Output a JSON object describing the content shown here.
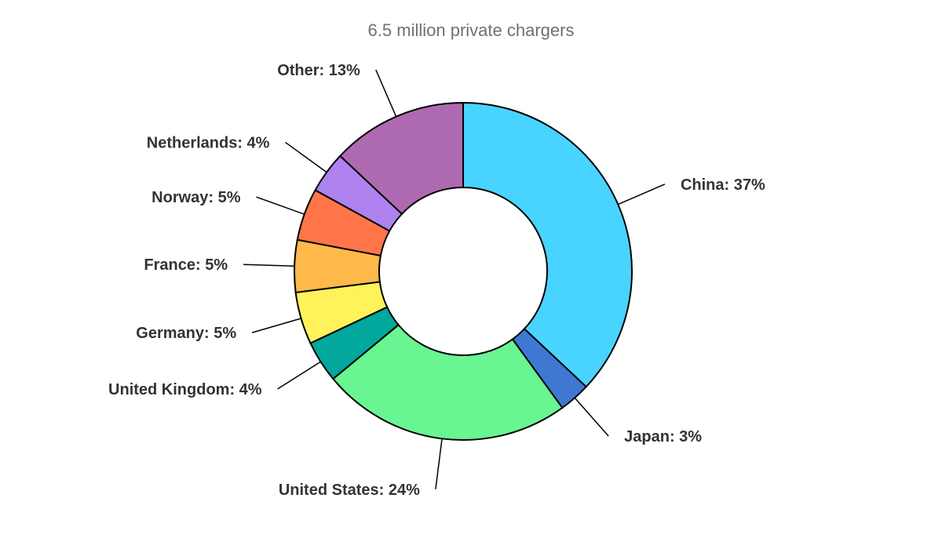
{
  "chart_data": {
    "type": "pie",
    "title": "6.5 million private chargers",
    "hole": true,
    "slices": [
      {
        "name": "China",
        "value": 37,
        "label": "China: 37%",
        "color": "#48D4FF"
      },
      {
        "name": "Japan",
        "value": 3,
        "label": "Japan: 3%",
        "color": "#3F78D2"
      },
      {
        "name": "United States",
        "value": 24,
        "label": "United States: 24%",
        "color": "#68F592"
      },
      {
        "name": "United Kingdom",
        "value": 4,
        "label": "United Kingdom: 4%",
        "color": "#02A89B"
      },
      {
        "name": "Germany",
        "value": 5,
        "label": "Germany: 5%",
        "color": "#FFF25B"
      },
      {
        "name": "France",
        "value": 5,
        "label": "France: 5%",
        "color": "#FFB84A"
      },
      {
        "name": "Norway",
        "value": 5,
        "label": "Norway: 5%",
        "color": "#FF7549"
      },
      {
        "name": "Netherlands",
        "value": 4,
        "label": "Netherlands: 4%",
        "color": "#AE82EF"
      },
      {
        "name": "Other",
        "value": 13,
        "label": "Other: 13%",
        "color": "#AE6AB0"
      }
    ]
  }
}
